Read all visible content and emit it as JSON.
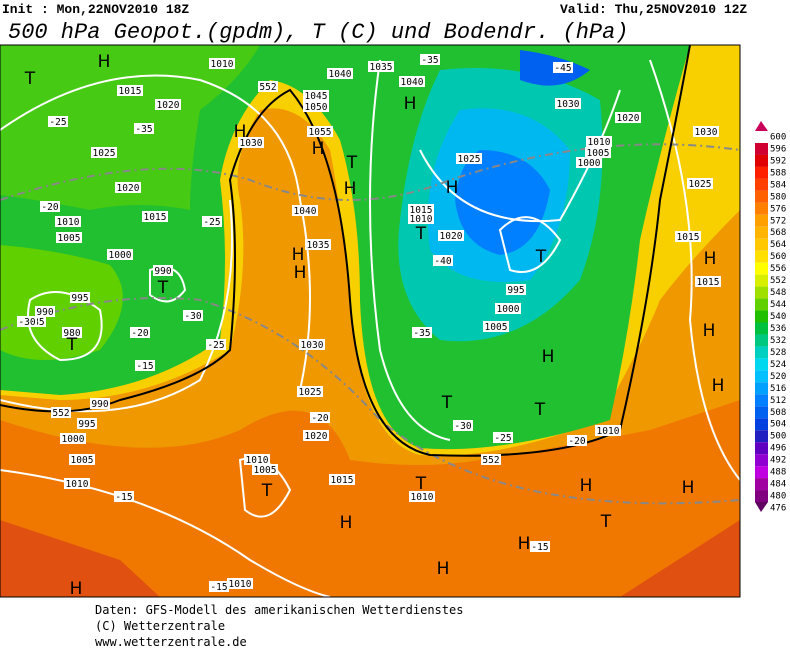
{
  "header": {
    "init": "Init : Mon,22NOV2010 18Z",
    "valid": "Valid: Thu,25NOV2010 12Z",
    "title": "500 hPa Geopot.(gpdm), T (C) und Bodendr. (hPa)"
  },
  "colorbar": {
    "labels": [
      600,
      596,
      592,
      588,
      584,
      580,
      576,
      572,
      568,
      564,
      560,
      556,
      552,
      548,
      544,
      540,
      536,
      532,
      528,
      524,
      520,
      516,
      512,
      508,
      504,
      500,
      496,
      492,
      488,
      484,
      480,
      476
    ],
    "colors": [
      "#c8005a",
      "#d00030",
      "#e00000",
      "#ff2000",
      "#ff4000",
      "#ff6000",
      "#ff8000",
      "#ffa000",
      "#ffb400",
      "#ffc800",
      "#ffe000",
      "#ffff00",
      "#d8f000",
      "#a0e000",
      "#60d000",
      "#20c000",
      "#00c040",
      "#00c880",
      "#00d0c0",
      "#00d8f0",
      "#00c0ff",
      "#00a0ff",
      "#0080ff",
      "#0060f0",
      "#0040e0",
      "#2020c0",
      "#6000c0",
      "#9000d0",
      "#c000e0",
      "#a000a0",
      "#800080",
      "#600060"
    ]
  },
  "map": {
    "labels": [
      "995",
      "T",
      "H",
      "1015",
      "1020",
      "1025",
      "1020",
      "1015",
      "1010",
      "1005",
      "1000",
      "990",
      "T",
      "995",
      "990",
      "985",
      "980",
      "T",
      "990",
      "995",
      "1000",
      "1005",
      "1010",
      "H",
      "1010",
      "H",
      "1030",
      "1040",
      "1035",
      "H",
      "H",
      "1030",
      "1025",
      "1020",
      "1010",
      "1005",
      "T",
      "1015",
      "H",
      "1010",
      "1040",
      "1035",
      "1040",
      "H",
      "1045",
      "1050",
      "1055",
      "H",
      "T",
      "H",
      "1025",
      "H",
      "1015",
      "1010",
      "T",
      "1020",
      "T",
      "995",
      "1000",
      "1005",
      "H",
      "T",
      "T",
      "1030",
      "1020",
      "1010",
      "1005",
      "1000",
      "1030",
      "1025",
      "1015",
      "H",
      "1015",
      "H",
      "H",
      "H",
      "H",
      "T",
      "H",
      "H",
      "T",
      "1010",
      "1010",
      "-45",
      "-35",
      "-25",
      "-35",
      "-40",
      "-35",
      "-30",
      "-25",
      "-20",
      "-15",
      "-15",
      "-15",
      "-20",
      "-25",
      "-30",
      "-20",
      "-15",
      "-25",
      "-20",
      "-30",
      "552",
      "552",
      "552"
    ]
  },
  "footer": {
    "lines": [
      "Daten: GFS-Modell des amerikanischen Wetterdienstes",
      "(C) Wetterzentrale",
      "www.wetterzentrale.de"
    ]
  }
}
